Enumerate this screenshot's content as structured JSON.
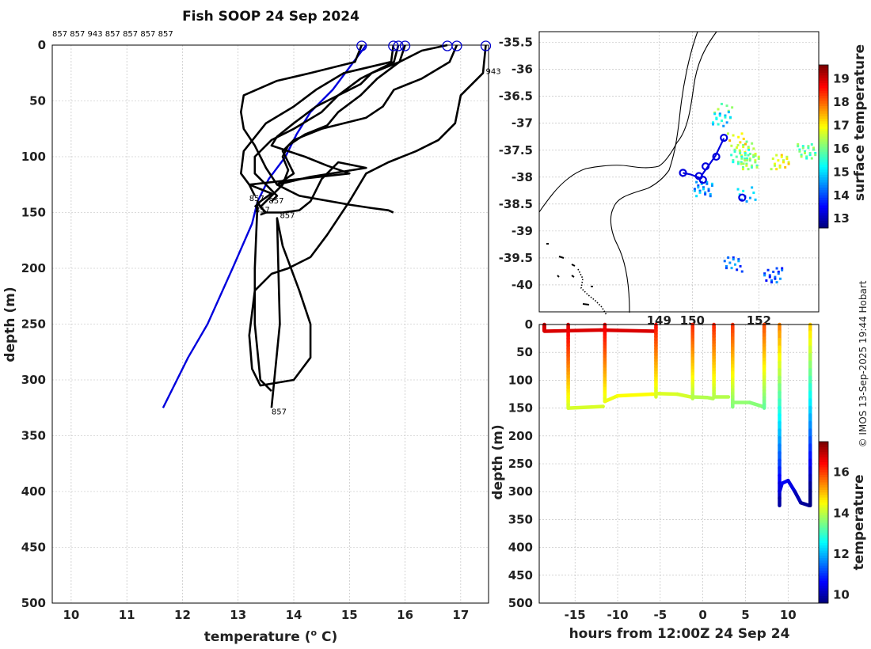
{
  "chart_data": [
    {
      "type": "line",
      "name": "profiles",
      "title": "Fish SOOP 24 Sep 2024",
      "xlabel": "temperature (",
      "xlabel_sup": "o",
      "xlabel_end": " C)",
      "ylabel": "depth (m)",
      "xlim": [
        9.66,
        17.5
      ],
      "ylim": [
        0,
        500
      ],
      "y_reversed": true,
      "xticks": [
        10,
        11,
        12,
        13,
        14,
        15,
        16,
        17
      ],
      "yticks": [
        0,
        50,
        100,
        150,
        200,
        250,
        300,
        350,
        400,
        450,
        500
      ],
      "top_labels": "857 857 943 857 857 857 857",
      "colors": {
        "profile": "#000000",
        "climatology": "#0000dd",
        "marker": "#0000cc"
      },
      "surface_markers": [
        15.22,
        15.79,
        15.88,
        16.0,
        16.76,
        16.93,
        17.45
      ],
      "end_labels": [
        {
          "text": "943",
          "t": 17.45,
          "d": 23
        },
        {
          "text": "857",
          "t": 13.2,
          "d": 137
        },
        {
          "text": "857",
          "t": 13.55,
          "d": 139
        },
        {
          "text": "857",
          "t": 13.3,
          "d": 147
        },
        {
          "text": "857",
          "t": 13.75,
          "d": 152
        },
        {
          "text": "857",
          "t": 13.6,
          "d": 328
        }
      ],
      "series": [
        {
          "name": "climatology",
          "t": [
            15.3,
            15.0,
            14.7,
            14.3,
            14.05,
            13.85,
            13.55,
            13.35,
            13.25,
            12.9,
            12.45,
            12.1,
            11.65
          ],
          "d": [
            0,
            20,
            40,
            60,
            80,
            100,
            120,
            140,
            160,
            200,
            250,
            280,
            325
          ]
        },
        {
          "name": "profile-1",
          "t": [
            15.22,
            15.1,
            14.3,
            13.7,
            13.1,
            13.05,
            13.1,
            13.3,
            13.5,
            13.7,
            14.1,
            15.0,
            15.4,
            15.7,
            15.79
          ],
          "d": [
            0,
            15,
            25,
            32,
            45,
            60,
            75,
            90,
            110,
            125,
            135,
            143,
            146,
            148,
            150
          ]
        },
        {
          "name": "profile-2",
          "t": [
            15.79,
            15.75,
            14.9,
            14.4,
            14.0,
            13.5,
            13.1,
            13.05,
            13.2,
            13.6,
            13.4,
            13.3
          ],
          "d": [
            0,
            15,
            25,
            40,
            55,
            70,
            95,
            115,
            125,
            133,
            140,
            145
          ]
        },
        {
          "name": "profile-3",
          "t": [
            15.88,
            15.8,
            15.2,
            14.8,
            14.5,
            14.0,
            13.6,
            13.3,
            13.3,
            13.5,
            13.7,
            13.6
          ],
          "d": [
            0,
            15,
            30,
            45,
            60,
            75,
            85,
            100,
            115,
            125,
            135,
            140
          ]
        },
        {
          "name": "profile-4",
          "t": [
            16.0,
            15.9,
            15.4,
            15.2,
            14.8,
            14.4,
            14.0,
            13.7,
            13.6,
            14.2,
            14.6,
            15.0,
            13.2,
            13.3
          ],
          "d": [
            0,
            15,
            25,
            35,
            45,
            55,
            70,
            82,
            90,
            100,
            108,
            115,
            125,
            135
          ]
        },
        {
          "name": "profile-5",
          "t": [
            16.76,
            16.3,
            15.9,
            15.5,
            15.2,
            14.8,
            14.6,
            14.2,
            13.9,
            13.8,
            13.9,
            13.8,
            13.6,
            13.4,
            13.5,
            13.4
          ],
          "d": [
            0,
            5,
            15,
            30,
            45,
            60,
            72,
            80,
            90,
            100,
            112,
            125,
            135,
            145,
            150,
            152
          ]
        },
        {
          "name": "profile-6",
          "t": [
            16.93,
            16.8,
            16.3,
            15.8,
            15.6,
            15.3,
            14.5,
            14.0,
            13.8,
            14.0,
            13.7,
            14.3,
            15.3,
            14.8,
            14.5,
            14.3,
            14.1,
            13.8,
            13.5,
            13.4,
            13.35,
            13.3,
            13.3,
            13.4,
            13.6
          ],
          "d": [
            0,
            15,
            30,
            40,
            55,
            65,
            75,
            85,
            95,
            115,
            125,
            118,
            110,
            105,
            120,
            140,
            148,
            150,
            150,
            145,
            140,
            200,
            250,
            300,
            310
          ]
        },
        {
          "name": "profile-7",
          "t": [
            17.45,
            17.4,
            17.0,
            16.9,
            16.6,
            16.2,
            15.7,
            15.3,
            15.0,
            14.6,
            14.3,
            13.9,
            13.6,
            13.3,
            13.2,
            13.25,
            13.4,
            14.0,
            14.3,
            14.3,
            14.1,
            13.8,
            13.7,
            13.75,
            13.6
          ],
          "d": [
            0,
            25,
            45,
            70,
            85,
            95,
            105,
            115,
            140,
            170,
            190,
            200,
            205,
            220,
            260,
            290,
            305,
            300,
            280,
            250,
            220,
            180,
            155,
            250,
            325
          ]
        }
      ]
    },
    {
      "type": "heatmap",
      "name": "map",
      "colorbar_label": "surface temperature",
      "lon_range": [
        145.4,
        153.8
      ],
      "lat_range": [
        -40.5,
        -35.3
      ],
      "yticks": [
        -35.5,
        -36,
        -36.5,
        -37,
        -37.5,
        -38,
        -38.5,
        -39,
        -39.5,
        -40
      ],
      "xticks": [
        149,
        150,
        152
      ],
      "xtick_labels": [
        "149",
        "150",
        "152"
      ],
      "colorbar_ticks": [
        13,
        14,
        15,
        16,
        17,
        18,
        19
      ],
      "colorbar_range": [
        12.6,
        19.6
      ],
      "track": [
        {
          "lon": 150.95,
          "lat": -37.28
        },
        {
          "lon": 150.7,
          "lat": -37.6
        },
        {
          "lon": 150.45,
          "lat": -37.82
        },
        {
          "lon": 150.3,
          "lat": -37.95
        },
        {
          "lon": 150.25,
          "lat": -38.02
        },
        {
          "lon": 149.95,
          "lat": -37.95
        },
        {
          "lon": 149.72,
          "lat": -37.92
        }
      ],
      "station_markers": [
        {
          "lon": 150.95,
          "lat": -37.27
        },
        {
          "lon": 150.72,
          "lat": -37.62
        },
        {
          "lon": 150.4,
          "lat": -37.8
        },
        {
          "lon": 150.2,
          "lat": -37.98
        },
        {
          "lon": 150.32,
          "lat": -38.05
        },
        {
          "lon": 149.72,
          "lat": -37.92
        },
        {
          "lon": 151.5,
          "lat": -38.38
        }
      ],
      "sst_patches": [
        {
          "lon": 151.3,
          "lat": -37.3,
          "sst": 17.0
        },
        {
          "lon": 151.6,
          "lat": -37.45,
          "sst": 16.5
        },
        {
          "lon": 151.4,
          "lat": -37.6,
          "sst": 15.8
        },
        {
          "lon": 151.7,
          "lat": -37.7,
          "sst": 16.2
        },
        {
          "lon": 150.9,
          "lat": -36.75,
          "sst": 16.0
        },
        {
          "lon": 150.85,
          "lat": -36.9,
          "sst": 15.0
        },
        {
          "lon": 152.6,
          "lat": -37.7,
          "sst": 16.9
        },
        {
          "lon": 153.4,
          "lat": -37.5,
          "sst": 15.9
        },
        {
          "lon": 151.6,
          "lat": -38.3,
          "sst": 14.8
        },
        {
          "lon": 151.2,
          "lat": -39.6,
          "sst": 14.2
        },
        {
          "lon": 152.4,
          "lat": -39.8,
          "sst": 14.0
        },
        {
          "lon": 150.3,
          "lat": -38.2,
          "sst": 14.5
        }
      ]
    },
    {
      "type": "scatter",
      "name": "section",
      "xlabel": "hours from 12:00Z 24 Sep 24",
      "ylabel": "depth (m)",
      "colorbar_label": "temperature",
      "xlim": [
        -19.2,
        13.6
      ],
      "ylim": [
        0,
        500
      ],
      "xticks": [
        -15,
        -10,
        -5,
        0,
        5,
        10
      ],
      "yticks": [
        0,
        50,
        100,
        150,
        200,
        250,
        300,
        350,
        400,
        450,
        500
      ],
      "colorbar_ticks": [
        10,
        12,
        14,
        16
      ],
      "colorbar_range": [
        9.6,
        17.5
      ],
      "casts": [
        {
          "h": -18.6,
          "t0": 17.0,
          "bottom": [
            [
              -18.5,
              12
            ],
            [
              -12,
              10
            ],
            [
              -5.6,
              12
            ]
          ]
        },
        {
          "h": -15.8,
          "t0": 16.9,
          "bottom": [
            [
              -15.8,
              150
            ],
            [
              -13,
              148
            ],
            [
              -11.7,
              147
            ]
          ]
        },
        {
          "h": -11.5,
          "t0": 16.8,
          "bottom": [
            [
              -11.5,
              138
            ],
            [
              -10,
              128
            ],
            [
              -6,
              125
            ],
            [
              -5.6,
              125
            ]
          ]
        },
        {
          "h": -5.5,
          "t0": 16.5,
          "bottom": [
            [
              -5.5,
              124
            ],
            [
              -3,
              125
            ],
            [
              -1.4,
              130
            ]
          ]
        },
        {
          "h": -1.2,
          "t0": 16.3,
          "bottom": [
            [
              -1.2,
              130
            ],
            [
              0.5,
              131
            ],
            [
              1.2,
              133
            ]
          ]
        },
        {
          "h": 1.3,
          "t0": 16.3,
          "bottom": [
            [
              1.3,
              130
            ],
            [
              3,
              130
            ]
          ]
        },
        {
          "h": 3.5,
          "t0": 16.2,
          "bottom": [
            [
              3.5,
              140
            ],
            [
              5.5,
              140
            ],
            [
              7.2,
              148
            ]
          ]
        },
        {
          "h": 7.2,
          "t0": 16.0,
          "bottom": []
        },
        {
          "h": 9.0,
          "t0": 15.6,
          "bottom": [
            [
              9.0,
              300
            ],
            [
              9.3,
              285
            ],
            [
              10,
              280
            ],
            [
              10.8,
              300
            ],
            [
              11.5,
              320
            ],
            [
              12.5,
              325
            ]
          ]
        },
        {
          "h": 12.6,
          "t0": 15.0,
          "bottom": []
        }
      ]
    }
  ],
  "credit": "© IMOS 13-Sep-2025 19:44 Hobart"
}
